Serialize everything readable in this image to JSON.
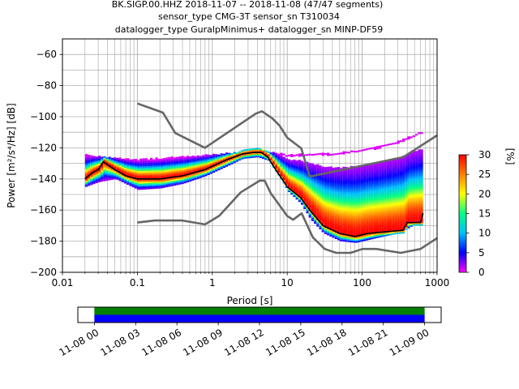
{
  "figure": {
    "title_lines": [
      "BK.SIGP.00.HHZ   2018-11-07 -- 2018-11-08  (47/47 segments)",
      "sensor_type CMG-3T sensor_sn T310034",
      "datalogger_type GuralpMinimus+ datalogger_sn MINP-DF59"
    ]
  },
  "chart_data": [
    {
      "type": "heatmap",
      "title": "BK.SIGP.00.HHZ   2018-11-07 -- 2018-11-08  (47/47 segments)",
      "xlabel": "Period [s]",
      "ylabel": "Power [m²/s⁴/Hz] [dB]",
      "xscale": "log",
      "xlim": [
        0.01,
        1000
      ],
      "ylim": [
        -200,
        -50
      ],
      "x_ticks": [
        {
          "value": 0.01,
          "label": "0.01"
        },
        {
          "value": 0.1,
          "label": "0.1"
        },
        {
          "value": 1,
          "label": "1"
        },
        {
          "value": 10,
          "label": "10"
        },
        {
          "value": 100,
          "label": "100"
        },
        {
          "value": 1000,
          "label": "1000"
        }
      ],
      "y_ticks": [
        {
          "value": -60,
          "label": "−60"
        },
        {
          "value": -80,
          "label": "−80"
        },
        {
          "value": -100,
          "label": "−100"
        },
        {
          "value": -120,
          "label": "−120"
        },
        {
          "value": -140,
          "label": "−140"
        },
        {
          "value": -160,
          "label": "−160"
        },
        {
          "value": -180,
          "label": "−180"
        },
        {
          "value": -200,
          "label": "−200"
        }
      ],
      "grid": true,
      "colorbar": {
        "label": "[%]",
        "range": [
          0,
          30
        ],
        "ticks": [
          0,
          5,
          10,
          15,
          20,
          25,
          30
        ],
        "colors": [
          "#ff00ff",
          "#0000ff",
          "#00c0ff",
          "#00ff80",
          "#ffff00",
          "#ff8000",
          "#ff0000"
        ]
      },
      "series": [
        {
          "role": "noise-model-high",
          "color": "#666666",
          "x": [
            0.1,
            0.22,
            0.32,
            0.8,
            3.8,
            4.6,
            6.3,
            7.9,
            10,
            15.4,
            20,
            354,
            1000
          ],
          "y": [
            -91.5,
            -97.4,
            -110.5,
            -120,
            -98,
            -96.5,
            -101,
            -105.7,
            -113.5,
            -120.3,
            -138.5,
            -126,
            -112
          ]
        },
        {
          "role": "noise-model-low",
          "color": "#666666",
          "x": [
            0.1,
            0.17,
            0.4,
            0.8,
            1.24,
            2.4,
            4.3,
            5,
            6,
            10,
            12,
            15.6,
            21.9,
            31.6,
            45,
            70,
            101,
            154,
            328,
            600,
            1000
          ],
          "y": [
            -168,
            -166.7,
            -166.7,
            -169.2,
            -163.7,
            -148.6,
            -141.1,
            -141.1,
            -149,
            -163.8,
            -166.2,
            -162.1,
            -177.5,
            -185,
            -187.5,
            -187.5,
            -185,
            -185,
            -187.5,
            -185,
            -178
          ]
        },
        {
          "role": "mode",
          "color": "#000000",
          "x": [
            0.02,
            0.025,
            0.03,
            0.035,
            0.05,
            0.07,
            0.1,
            0.2,
            0.4,
            0.8,
            1.5,
            2.5,
            3.5,
            4.5,
            5.5,
            7,
            10,
            15,
            20,
            30,
            50,
            80,
            120,
            200,
            350,
            400,
            600,
            650
          ],
          "y": [
            -140,
            -136,
            -134,
            -129,
            -134,
            -138,
            -140,
            -140,
            -138,
            -134,
            -128,
            -124,
            -123,
            -123,
            -126,
            -134,
            -145,
            -152,
            -160,
            -170,
            -175,
            -177,
            -175,
            -174,
            -173,
            -168,
            -168,
            -162
          ]
        },
        {
          "role": "upper-outlier-trace",
          "color": "#ff00ff",
          "x": [
            0.02,
            0.05,
            0.1,
            0.2,
            0.4,
            0.8,
            1.5,
            2.5,
            4,
            6,
            10,
            20,
            40,
            80,
            150,
            300,
            600
          ],
          "y": [
            -125,
            -127,
            -128,
            -127,
            -126,
            -125,
            -124,
            -123,
            -122,
            -123,
            -125,
            -124,
            -124,
            -122,
            -120,
            -116,
            -110
          ]
        },
        {
          "role": "lower-density-edge",
          "color": "#0000ff",
          "x": [
            0.02,
            0.03,
            0.05,
            0.1,
            0.2,
            0.4,
            0.8,
            1.5,
            2.5,
            4,
            6,
            10,
            15,
            20,
            30,
            50,
            80,
            150,
            300,
            600
          ],
          "y": [
            -145,
            -142,
            -140,
            -147,
            -146,
            -143,
            -138,
            -132,
            -127,
            -126,
            -129,
            -148,
            -156,
            -166,
            -175,
            -180,
            -181,
            -178,
            -175,
            -167
          ]
        }
      ]
    },
    {
      "type": "timeline",
      "tick_labels": [
        "11-08 00",
        "11-08 03",
        "11-08 06",
        "11-08 09",
        "11-08 12",
        "11-08 15",
        "11-08 18",
        "11-08 21",
        "11-09 00"
      ],
      "tick_hours": [
        0,
        3,
        6,
        9,
        12,
        15,
        18,
        21,
        24
      ],
      "xlim_hours": [
        -1.2,
        25.2
      ],
      "coverage": [
        {
          "start_hour": 0,
          "end_hour": 24,
          "color": "#008000"
        },
        {
          "start_hour": 0,
          "end_hour": 24,
          "color": "#0000ff"
        }
      ]
    }
  ]
}
